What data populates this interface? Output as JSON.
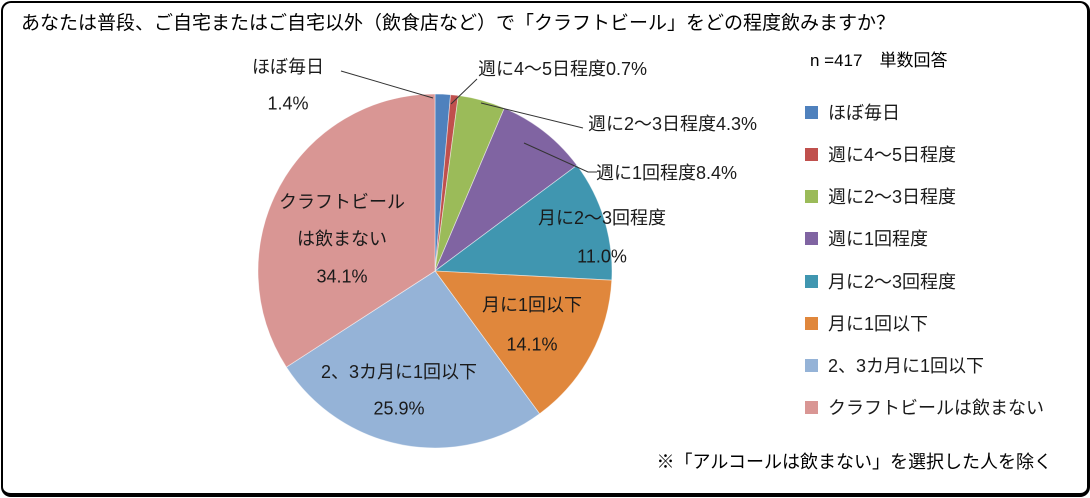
{
  "title": "あなたは普段、ご自宅またはご自宅以外（飲食店など）で「クラフトビール」をどの程度飲みますか？",
  "sample_note": "n =417　単数回答",
  "footnote": "※「アルコールは飲まない」を選択した人を除く",
  "chart_data": {
    "type": "pie",
    "title": "あなたは普段、ご自宅またはご自宅以外（飲食店など）で「クラフトビール」をどの程度飲みますか？",
    "sample_size": 417,
    "answer_type": "単数回答",
    "unit": "%",
    "start_at_top_clockwise": true,
    "legend_position": "right",
    "slices": [
      {
        "label": "ほぼ毎日",
        "value": 1.4,
        "display": "1.4%",
        "color": "#4F81BD"
      },
      {
        "label": "週に4〜5日程度",
        "value": 0.7,
        "display": "0.7%",
        "color": "#C0504D"
      },
      {
        "label": "週に2〜3日程度",
        "value": 4.3,
        "display": "4.3%",
        "color": "#9BBB59"
      },
      {
        "label": "週に1回程度",
        "value": 8.4,
        "display": "8.4%",
        "color": "#8064A2"
      },
      {
        "label": "月に2〜3回程度",
        "value": 11.0,
        "display": "11.0%",
        "color": "#4096B0"
      },
      {
        "label": "月に1回以下",
        "value": 14.1,
        "display": "14.1%",
        "color": "#E0873C"
      },
      {
        "label": "2、3カ月に1回以下",
        "value": 25.9,
        "display": "25.9%",
        "color": "#95B3D7"
      },
      {
        "label": "クラフトビールは飲まない",
        "value": 34.1,
        "display": "34.1%",
        "color": "#D99694"
      }
    ]
  }
}
